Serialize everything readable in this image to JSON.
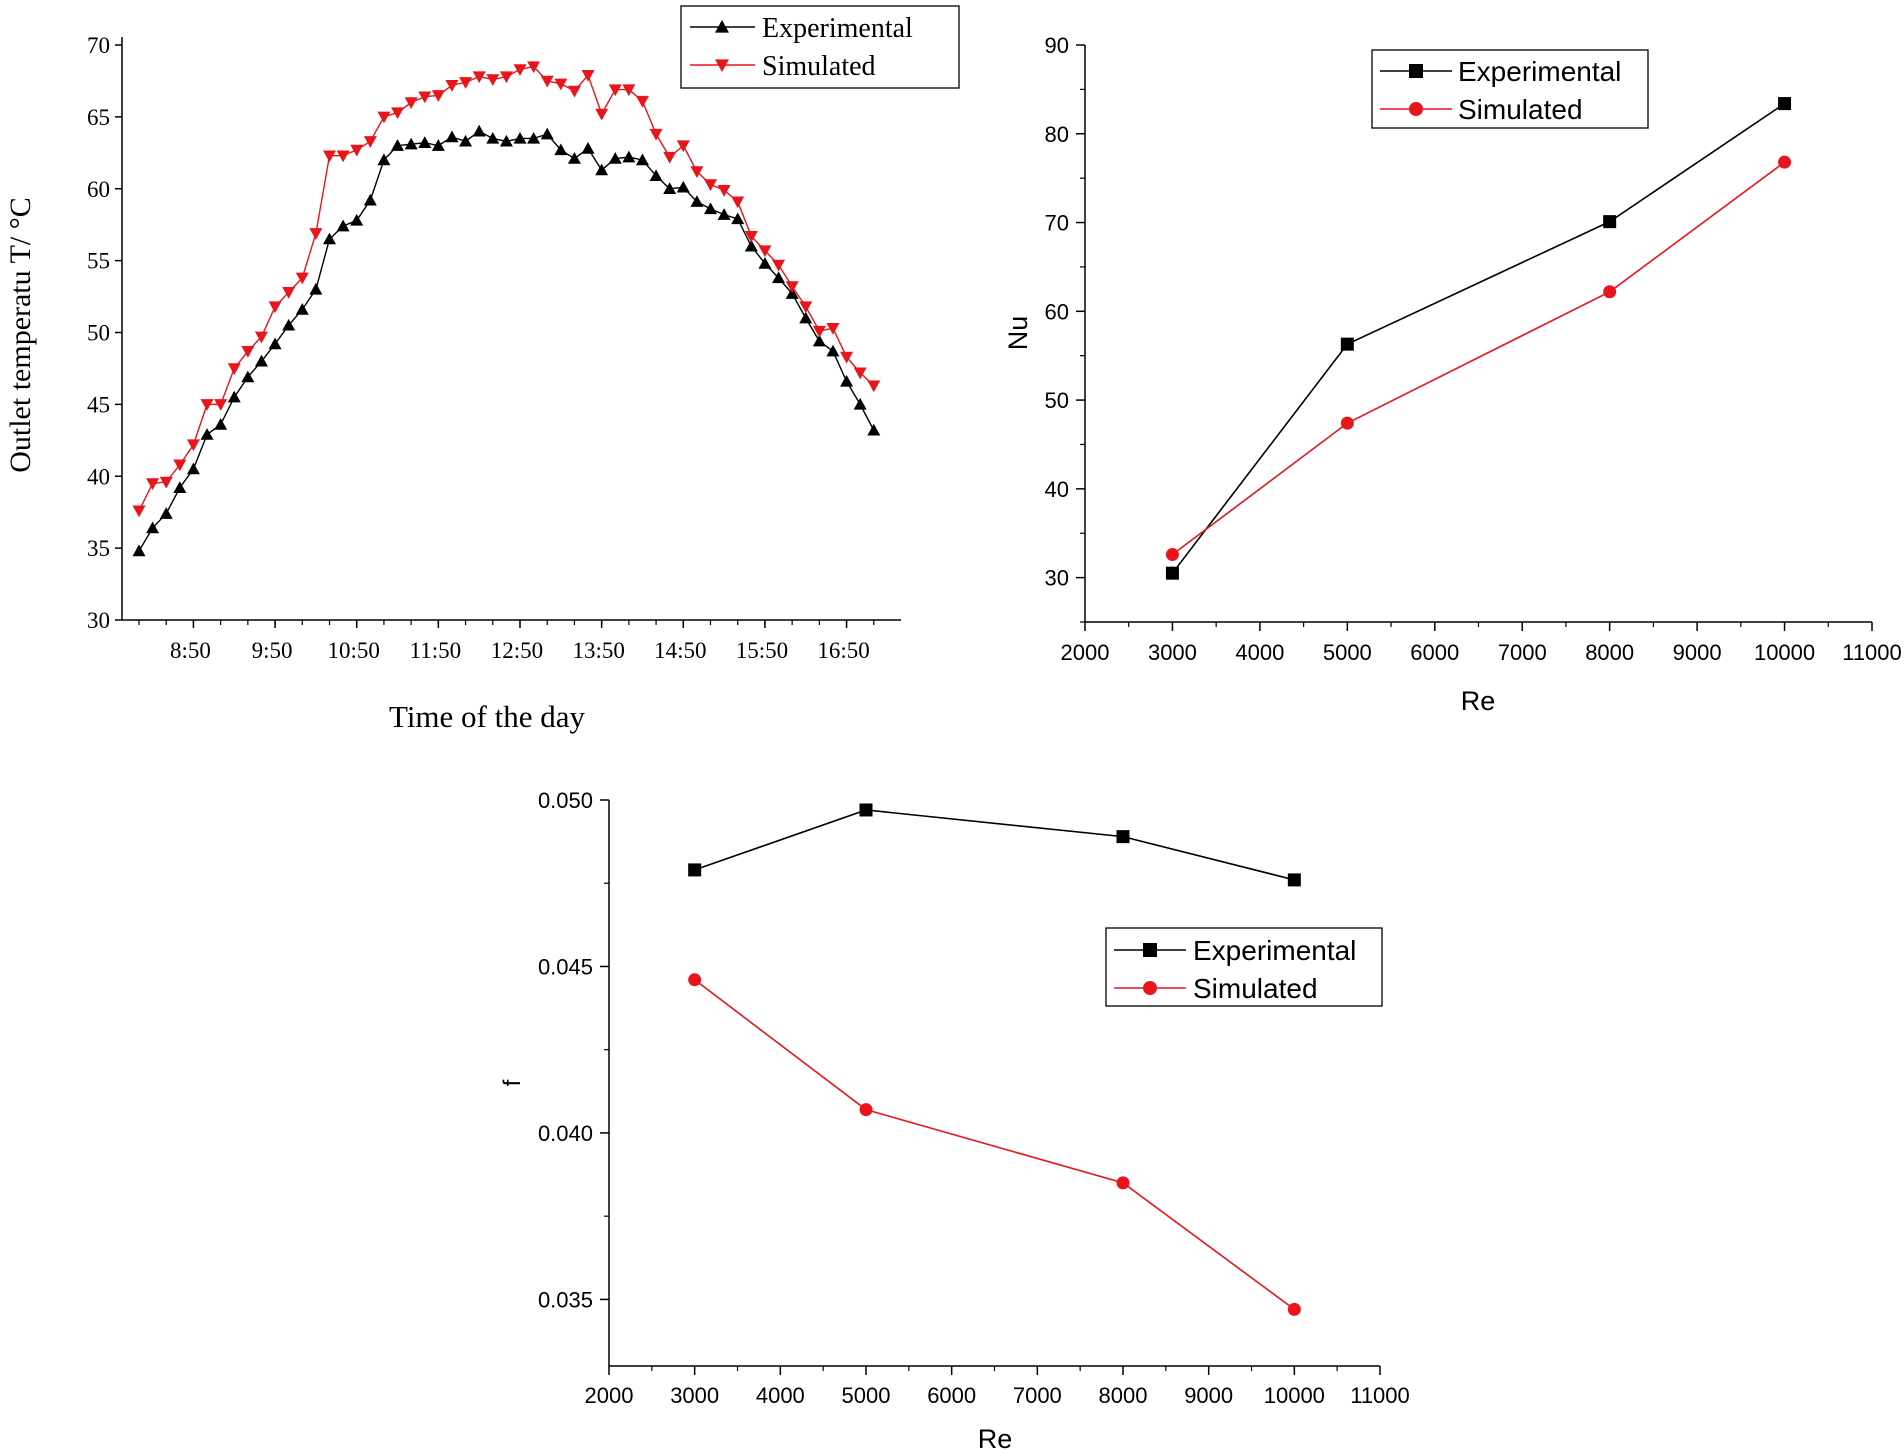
{
  "chart_data": [
    {
      "id": "temp",
      "type": "line",
      "title": "",
      "xlabel": "Time of the day",
      "ylabel": "Outlet temperatu  T/ °C",
      "ylim": [
        30,
        70
      ],
      "yticks": [
        30,
        35,
        40,
        45,
        50,
        55,
        60,
        65,
        70
      ],
      "xlim": [
        0,
        56
      ],
      "xtick_labels": [
        "8:50",
        "9:50",
        "10:50",
        "11:50",
        "12:50",
        "13:50",
        "14:50",
        "15:50",
        "16:50"
      ],
      "xtick_positions": [
        4,
        10,
        16,
        22,
        28,
        34,
        40,
        46,
        52
      ],
      "grid": false,
      "legend_position": "top-right",
      "series": [
        {
          "name": "Experimental",
          "color": "#000000",
          "marker": "triangle-up",
          "x": [
            0,
            1,
            2,
            3,
            4,
            5,
            6,
            7,
            8,
            9,
            10,
            11,
            12,
            13,
            14,
            15,
            16,
            17,
            18,
            19,
            20,
            21,
            22,
            23,
            24,
            25,
            26,
            27,
            28,
            29,
            30,
            31,
            32,
            33,
            34,
            35,
            36,
            37,
            38,
            39,
            40,
            41,
            42,
            43,
            44,
            45,
            46,
            47,
            48,
            49,
            50,
            51,
            52,
            53,
            54,
            55
          ],
          "values": [
            34.8,
            36.4,
            37.4,
            39.2,
            40.5,
            42.9,
            43.6,
            45.5,
            46.9,
            48.0,
            49.2,
            50.5,
            51.6,
            53.0,
            56.5,
            57.4,
            57.8,
            59.2,
            62.0,
            63.0,
            63.1,
            63.2,
            63.0,
            63.6,
            63.3,
            64.0,
            63.5,
            63.3,
            63.5,
            63.5,
            63.8,
            62.7,
            62.1,
            62.8,
            61.3,
            62.1,
            62.2,
            62.0,
            60.9,
            60.0,
            60.1,
            59.1,
            58.6,
            58.2,
            57.9,
            56.0,
            54.8,
            53.8,
            52.7,
            51.0,
            49.4,
            48.7,
            46.6,
            45.0,
            43.2,
            null
          ]
        },
        {
          "name": "Simulated",
          "color": "#e8151b",
          "marker": "triangle-down",
          "x": [
            0,
            1,
            2,
            3,
            4,
            5,
            6,
            7,
            8,
            9,
            10,
            11,
            12,
            13,
            14,
            15,
            16,
            17,
            18,
            19,
            20,
            21,
            22,
            23,
            24,
            25,
            26,
            27,
            28,
            29,
            30,
            31,
            32,
            33,
            34,
            35,
            36,
            37,
            38,
            39,
            40,
            41,
            42,
            43,
            44,
            45,
            46,
            47,
            48,
            49,
            50,
            51,
            52,
            53,
            54,
            55
          ],
          "values": [
            37.6,
            39.5,
            39.6,
            40.8,
            42.2,
            45.0,
            45.0,
            47.5,
            48.7,
            49.7,
            51.8,
            52.8,
            53.8,
            56.9,
            62.3,
            62.3,
            62.7,
            63.3,
            65.0,
            65.3,
            66.0,
            66.4,
            66.5,
            67.2,
            67.4,
            67.8,
            67.6,
            67.8,
            68.3,
            68.5,
            67.5,
            67.3,
            66.8,
            67.9,
            65.2,
            66.9,
            66.9,
            66.1,
            63.8,
            62.2,
            63.0,
            61.2,
            60.3,
            59.9,
            59.1,
            56.7,
            55.7,
            54.7,
            53.2,
            51.8,
            50.1,
            50.3,
            48.3,
            47.2,
            46.3,
            null
          ]
        }
      ]
    },
    {
      "id": "nu",
      "type": "line",
      "title": "",
      "xlabel": "Re",
      "ylabel": "Nu",
      "xlim": [
        2000,
        11000
      ],
      "xticks": [
        2000,
        3000,
        4000,
        5000,
        6000,
        7000,
        8000,
        9000,
        10000,
        11000
      ],
      "ylim": [
        25,
        90
      ],
      "yticks": [
        30,
        40,
        50,
        60,
        70,
        80,
        90
      ],
      "grid": false,
      "legend_position": "top-center",
      "series": [
        {
          "name": "Experimental",
          "color": "#000000",
          "marker": "square",
          "x": [
            3000,
            5000,
            8000,
            10000
          ],
          "values": [
            30.5,
            56.3,
            70.1,
            83.4
          ]
        },
        {
          "name": "Simulated",
          "color": "#e8151b",
          "marker": "circle",
          "x": [
            3000,
            5000,
            8000,
            10000
          ],
          "values": [
            32.6,
            47.4,
            62.2,
            76.8
          ]
        }
      ]
    },
    {
      "id": "f",
      "type": "line",
      "title": "",
      "xlabel": "Re",
      "ylabel": "f",
      "xlim": [
        2000,
        11000
      ],
      "xticks": [
        2000,
        3000,
        4000,
        5000,
        6000,
        7000,
        8000,
        9000,
        10000,
        11000
      ],
      "ylim": [
        0.033,
        0.05
      ],
      "yticks": [
        0.035,
        0.04,
        0.045,
        0.05
      ],
      "ytick_labels": [
        "0.035",
        "0.040",
        "0.045",
        "0.050"
      ],
      "grid": false,
      "legend_position": "center-right",
      "series": [
        {
          "name": "Experimental",
          "color": "#000000",
          "marker": "square",
          "x": [
            3000,
            5000,
            8000,
            10000
          ],
          "values": [
            0.0479,
            0.0497,
            0.0489,
            0.0476
          ]
        },
        {
          "name": "Simulated",
          "color": "#e8151b",
          "marker": "circle",
          "x": [
            3000,
            5000,
            8000,
            10000
          ],
          "values": [
            0.0446,
            0.0407,
            0.0385,
            0.0347
          ]
        }
      ]
    }
  ]
}
